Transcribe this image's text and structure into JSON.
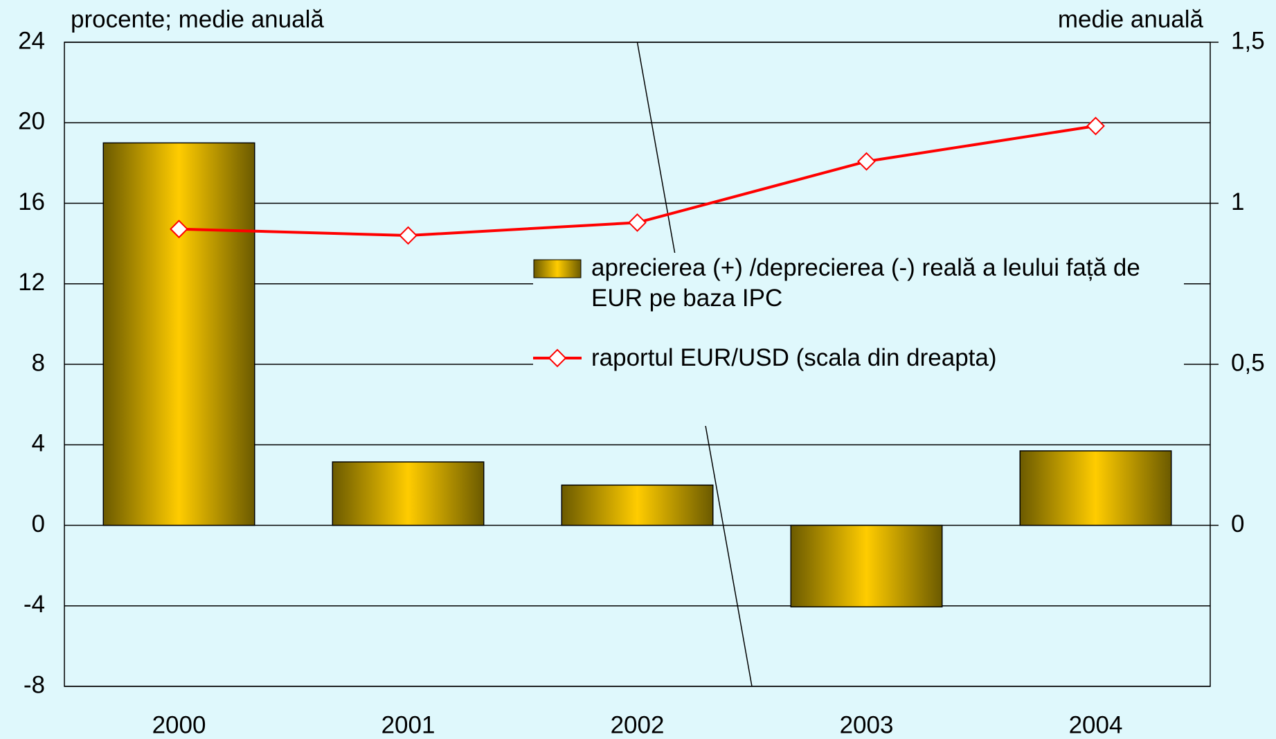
{
  "chart_data": {
    "type": "bar_line",
    "y_label": "procente; medie anuală",
    "y2_label": "medie anuală",
    "categories": [
      "2000",
      "2001",
      "2002",
      "2003",
      "2004"
    ],
    "series": [
      {
        "name": "aprecierea (+) /deprecierea (-) reală a leului față de EUR pe baza IPC",
        "color": "#ffcc00",
        "values": [
          19.0,
          3.15,
          2.0,
          -4.05,
          3.7
        ]
      },
      {
        "name": "raportul EUR/USD (scala din dreapta)",
        "color": "#ff0000",
        "axis": "y2",
        "values": [
          0.92,
          0.9,
          0.94,
          1.13,
          1.24
        ]
      }
    ],
    "ylim": [
      -8,
      24
    ],
    "yticks": [
      -8,
      -4,
      0,
      4,
      8,
      12,
      16,
      20,
      24
    ],
    "y2lim": [
      -0.5,
      1.5
    ],
    "y2ticks": [
      0,
      {
        "value": 0.5,
        "label": "0,5"
      },
      1,
      {
        "value": 1.5,
        "label": "1,5"
      }
    ],
    "grid": true
  }
}
